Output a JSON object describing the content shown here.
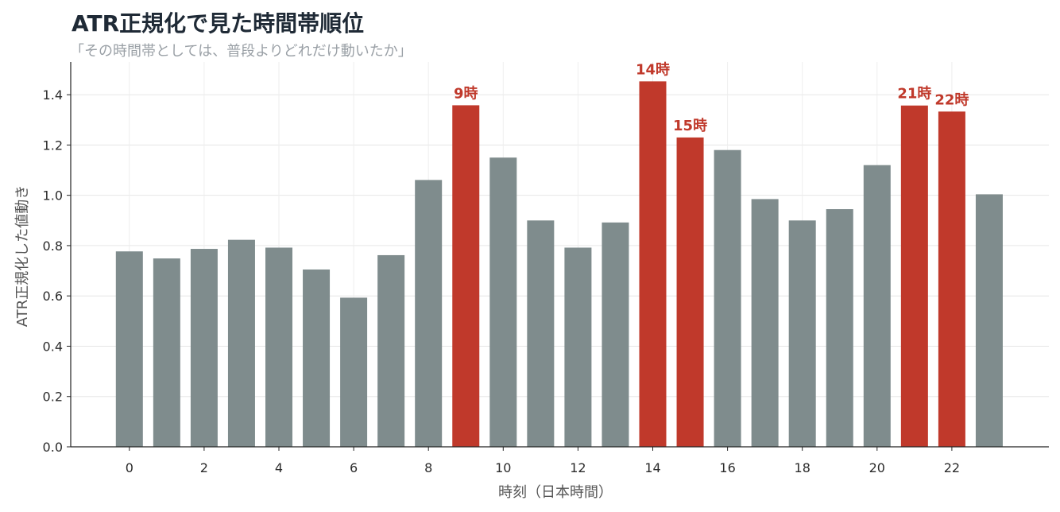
{
  "title": "ATR正規化で見た時間帯順位",
  "subtitle": "「その時間帯としては、普段よりどれだけ動いたか」",
  "chart_data": {
    "type": "bar",
    "xlabel": "時刻（日本時間）",
    "ylabel": "ATR正規化した値動き",
    "x": [
      0,
      1,
      2,
      3,
      4,
      5,
      6,
      7,
      8,
      9,
      10,
      11,
      12,
      13,
      14,
      15,
      16,
      17,
      18,
      19,
      20,
      21,
      22,
      23
    ],
    "values": [
      0.777,
      0.749,
      0.787,
      0.823,
      0.792,
      0.705,
      0.593,
      0.762,
      1.061,
      1.358,
      1.15,
      0.9,
      0.792,
      0.892,
      1.453,
      1.23,
      1.18,
      0.985,
      0.9,
      0.945,
      1.12,
      1.357,
      1.333,
      1.004
    ],
    "highlight": [
      9,
      14,
      15,
      21,
      22
    ],
    "highlight_labels": {
      "9": "9時",
      "14": "14時",
      "15": "15時",
      "21": "21時",
      "22": "22時"
    },
    "xticks": [
      0,
      2,
      4,
      6,
      8,
      10,
      12,
      14,
      16,
      18,
      20,
      22
    ],
    "yticks": [
      0.0,
      0.2,
      0.4,
      0.6,
      0.8,
      1.0,
      1.2,
      1.4
    ],
    "ylim": [
      0,
      1.53
    ],
    "grid": true,
    "colors": {
      "base": "#7f8c8d",
      "highlight": "#c0392b",
      "label": "#c0392b"
    }
  }
}
